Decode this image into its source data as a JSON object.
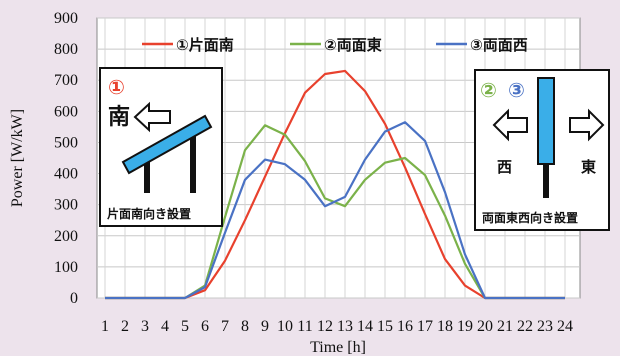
{
  "chart_data": {
    "type": "line",
    "xlabel": "Time [h]",
    "ylabel": "Power [W/kW]",
    "ylim": [
      0,
      900
    ],
    "yticks": [
      0,
      100,
      200,
      300,
      400,
      500,
      600,
      700,
      800,
      900
    ],
    "x": [
      1,
      2,
      3,
      4,
      5,
      6,
      7,
      8,
      9,
      10,
      11,
      12,
      13,
      14,
      15,
      16,
      17,
      18,
      19,
      20,
      21,
      22,
      23,
      24
    ],
    "grid": true,
    "legend_position": "top",
    "series": [
      {
        "name": "①片面南",
        "color": "#e8412d",
        "values": [
          0,
          0,
          0,
          0,
          0,
          25,
          120,
          250,
          390,
          530,
          660,
          720,
          730,
          665,
          560,
          420,
          270,
          125,
          40,
          0,
          0,
          0,
          0,
          0
        ]
      },
      {
        "name": "②両面東",
        "color": "#7bb24a",
        "values": [
          0,
          0,
          0,
          0,
          0,
          40,
          260,
          475,
          555,
          525,
          440,
          320,
          295,
          380,
          435,
          450,
          395,
          265,
          110,
          0,
          0,
          0,
          0,
          0
        ]
      },
      {
        "name": "③両面西",
        "color": "#4a72c4",
        "values": [
          0,
          0,
          0,
          0,
          0,
          35,
          210,
          380,
          445,
          430,
          380,
          295,
          325,
          445,
          535,
          565,
          505,
          340,
          140,
          0,
          0,
          0,
          0,
          0
        ]
      }
    ]
  },
  "insets": {
    "left": {
      "number": "①",
      "direction": "南",
      "caption": "片面南向き設置"
    },
    "right": {
      "number_a": "②",
      "number_b": "③",
      "west": "西",
      "east": "東",
      "caption": "両面東西向き設置"
    }
  },
  "colors": {
    "background": "#ede3ec",
    "panel_blue": "#3aaee8"
  }
}
